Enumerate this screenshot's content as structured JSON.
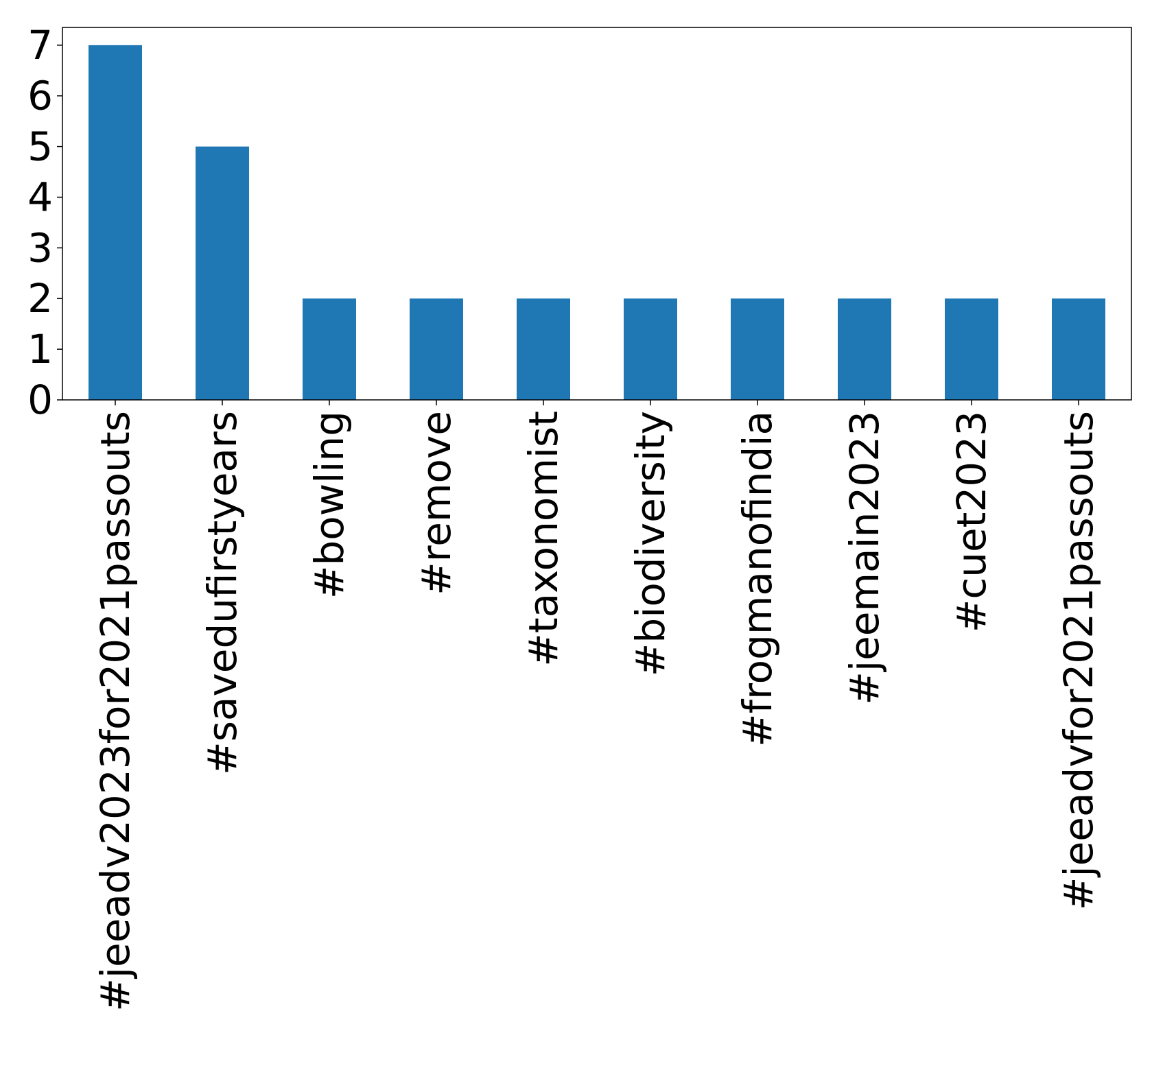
{
  "chart_data": {
    "type": "bar",
    "title": "",
    "xlabel": "",
    "ylabel": "",
    "categories": [
      "#jeeadv2023for2021passouts",
      "#savedufirstyears",
      "#bowling",
      "#remove",
      "#taxonomist",
      "#biodiversity",
      "#frogmanofindia",
      "#jeemain2023",
      "#cuet2023",
      "#jeeadvfor2021passouts"
    ],
    "values": [
      7,
      5,
      2,
      2,
      2,
      2,
      2,
      2,
      2,
      2
    ],
    "ylim": [
      0,
      7.35
    ],
    "yticks": [
      "0",
      "1",
      "2",
      "3",
      "4",
      "5",
      "6",
      "7"
    ],
    "grid": false,
    "legend": "none",
    "bar_color": "#1f77b4"
  }
}
